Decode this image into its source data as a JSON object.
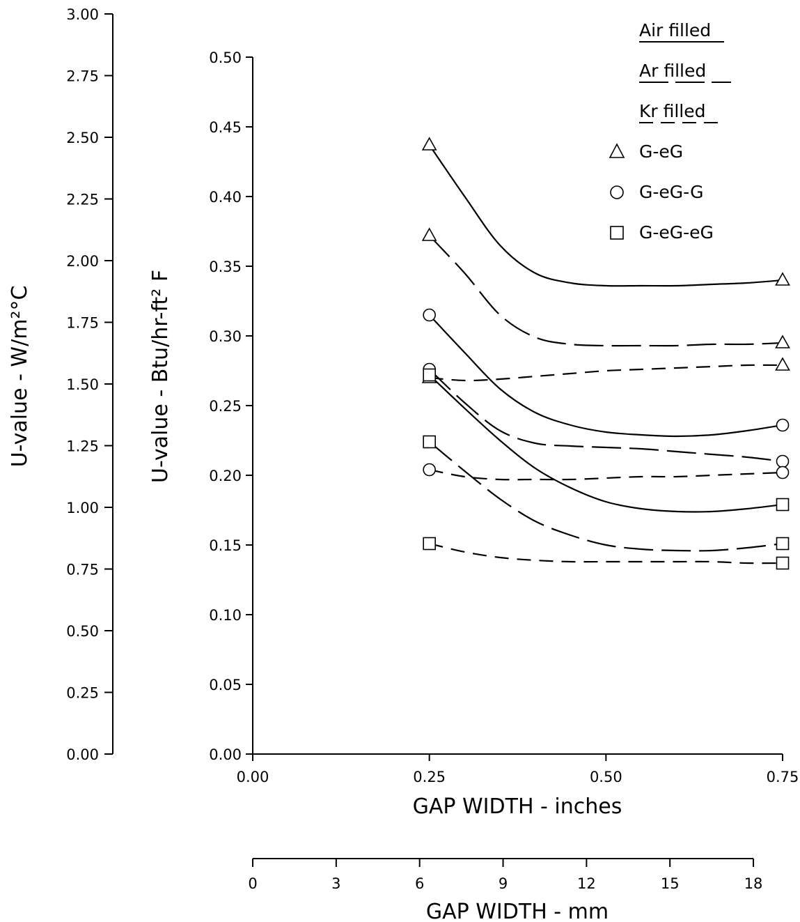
{
  "chart_data": {
    "type": "line",
    "x_unit_label": "GAP WIDTH - inches",
    "x_secondary_label": "GAP WIDTH - mm",
    "y_label": "U-value - Btu/hr-ft² F",
    "y_secondary_label": "U-value - W/m²°C",
    "x_range": [
      0,
      0.75
    ],
    "y_range": [
      0,
      0.5
    ],
    "y_secondary_range": [
      0,
      3.0
    ],
    "x_secondary_range": [
      0,
      18
    ],
    "x_ticks": [
      "0.00",
      "0.25",
      "0.50",
      "0.75"
    ],
    "y_ticks": [
      "0.00",
      "0.05",
      "0.10",
      "0.15",
      "0.20",
      "0.25",
      "0.30",
      "0.35",
      "0.40",
      "0.45",
      "0.50"
    ],
    "y_secondary_ticks": [
      "0.00",
      "0.25",
      "0.50",
      "0.75",
      "1.00",
      "1.25",
      "1.50",
      "1.75",
      "2.00",
      "2.25",
      "2.50",
      "2.75",
      "3.00"
    ],
    "x_secondary_ticks": [
      "0",
      "3",
      "6",
      "9",
      "12",
      "15",
      "18"
    ],
    "legend": {
      "fills": [
        {
          "label": "Air filled",
          "dash": "solid"
        },
        {
          "label": "Ar filled",
          "dash": "long-dash"
        },
        {
          "label": "Kr filled",
          "dash": "short-dash"
        }
      ],
      "markers": [
        {
          "label": "G-eG",
          "marker": "triangle"
        },
        {
          "label": "G-eG-G",
          "marker": "circle"
        },
        {
          "label": "G-eG-eG",
          "marker": "square"
        }
      ],
      "placement": "top-right"
    },
    "series": [
      {
        "glazing": "G-eG",
        "fill": "Air",
        "dash": "solid",
        "marker": "triangle",
        "points": [
          [
            0.25,
            0.437
          ],
          [
            0.75,
            0.34
          ]
        ],
        "curve": [
          [
            0.25,
            0.437
          ],
          [
            0.3,
            0.4
          ],
          [
            0.35,
            0.365
          ],
          [
            0.4,
            0.345
          ],
          [
            0.45,
            0.338
          ],
          [
            0.5,
            0.336
          ],
          [
            0.55,
            0.336
          ],
          [
            0.6,
            0.336
          ],
          [
            0.65,
            0.337
          ],
          [
            0.7,
            0.338
          ],
          [
            0.75,
            0.34
          ]
        ]
      },
      {
        "glazing": "G-eG",
        "fill": "Ar",
        "dash": "long-dash",
        "marker": "triangle",
        "points": [
          [
            0.25,
            0.372
          ],
          [
            0.75,
            0.295
          ]
        ],
        "curve": [
          [
            0.25,
            0.372
          ],
          [
            0.3,
            0.345
          ],
          [
            0.35,
            0.315
          ],
          [
            0.4,
            0.299
          ],
          [
            0.45,
            0.294
          ],
          [
            0.5,
            0.293
          ],
          [
            0.55,
            0.293
          ],
          [
            0.6,
            0.293
          ],
          [
            0.65,
            0.294
          ],
          [
            0.7,
            0.294
          ],
          [
            0.75,
            0.295
          ]
        ]
      },
      {
        "glazing": "G-eG",
        "fill": "Kr",
        "dash": "short-dash",
        "marker": "triangle",
        "points": [
          [
            0.25,
            0.27
          ],
          [
            0.75,
            0.279
          ]
        ],
        "curve": [
          [
            0.25,
            0.27
          ],
          [
            0.3,
            0.268
          ],
          [
            0.35,
            0.269
          ],
          [
            0.4,
            0.271
          ],
          [
            0.45,
            0.273
          ],
          [
            0.5,
            0.275
          ],
          [
            0.55,
            0.276
          ],
          [
            0.6,
            0.277
          ],
          [
            0.65,
            0.278
          ],
          [
            0.7,
            0.279
          ],
          [
            0.75,
            0.279
          ]
        ]
      },
      {
        "glazing": "G-eG-G",
        "fill": "Air",
        "dash": "solid",
        "marker": "circle",
        "points": [
          [
            0.25,
            0.315
          ],
          [
            0.75,
            0.236
          ]
        ],
        "curve": [
          [
            0.25,
            0.315
          ],
          [
            0.3,
            0.288
          ],
          [
            0.35,
            0.262
          ],
          [
            0.4,
            0.245
          ],
          [
            0.45,
            0.236
          ],
          [
            0.5,
            0.231
          ],
          [
            0.55,
            0.229
          ],
          [
            0.6,
            0.228
          ],
          [
            0.65,
            0.229
          ],
          [
            0.7,
            0.232
          ],
          [
            0.75,
            0.236
          ]
        ]
      },
      {
        "glazing": "G-eG-G",
        "fill": "Ar",
        "dash": "long-dash",
        "marker": "circle",
        "points": [
          [
            0.25,
            0.276
          ],
          [
            0.75,
            0.21
          ]
        ],
        "curve": [
          [
            0.25,
            0.276
          ],
          [
            0.3,
            0.252
          ],
          [
            0.35,
            0.232
          ],
          [
            0.4,
            0.223
          ],
          [
            0.45,
            0.221
          ],
          [
            0.5,
            0.22
          ],
          [
            0.55,
            0.219
          ],
          [
            0.6,
            0.217
          ],
          [
            0.65,
            0.215
          ],
          [
            0.7,
            0.213
          ],
          [
            0.75,
            0.21
          ]
        ]
      },
      {
        "glazing": "G-eG-G",
        "fill": "Kr",
        "dash": "short-dash",
        "marker": "circle",
        "points": [
          [
            0.25,
            0.204
          ],
          [
            0.75,
            0.202
          ]
        ],
        "curve": [
          [
            0.25,
            0.204
          ],
          [
            0.3,
            0.199
          ],
          [
            0.35,
            0.197
          ],
          [
            0.4,
            0.197
          ],
          [
            0.45,
            0.197
          ],
          [
            0.5,
            0.198
          ],
          [
            0.55,
            0.199
          ],
          [
            0.6,
            0.199
          ],
          [
            0.65,
            0.2
          ],
          [
            0.7,
            0.201
          ],
          [
            0.75,
            0.202
          ]
        ]
      },
      {
        "glazing": "G-eG-eG",
        "fill": "Air",
        "dash": "solid",
        "marker": "square",
        "points": [
          [
            0.25,
            0.272
          ],
          [
            0.75,
            0.179
          ]
        ],
        "curve": [
          [
            0.25,
            0.272
          ],
          [
            0.3,
            0.248
          ],
          [
            0.35,
            0.225
          ],
          [
            0.4,
            0.205
          ],
          [
            0.45,
            0.191
          ],
          [
            0.5,
            0.181
          ],
          [
            0.55,
            0.176
          ],
          [
            0.6,
            0.174
          ],
          [
            0.65,
            0.174
          ],
          [
            0.7,
            0.176
          ],
          [
            0.75,
            0.179
          ]
        ]
      },
      {
        "glazing": "G-eG-eG",
        "fill": "Ar",
        "dash": "long-dash",
        "marker": "square",
        "points": [
          [
            0.25,
            0.224
          ],
          [
            0.75,
            0.151
          ]
        ],
        "curve": [
          [
            0.25,
            0.224
          ],
          [
            0.3,
            0.203
          ],
          [
            0.35,
            0.183
          ],
          [
            0.4,
            0.167
          ],
          [
            0.45,
            0.157
          ],
          [
            0.5,
            0.15
          ],
          [
            0.55,
            0.147
          ],
          [
            0.6,
            0.146
          ],
          [
            0.65,
            0.146
          ],
          [
            0.7,
            0.148
          ],
          [
            0.75,
            0.151
          ]
        ]
      },
      {
        "glazing": "G-eG-eG",
        "fill": "Kr",
        "dash": "short-dash",
        "marker": "square",
        "points": [
          [
            0.25,
            0.151
          ],
          [
            0.75,
            0.137
          ]
        ],
        "curve": [
          [
            0.25,
            0.151
          ],
          [
            0.3,
            0.145
          ],
          [
            0.35,
            0.141
          ],
          [
            0.4,
            0.139
          ],
          [
            0.45,
            0.138
          ],
          [
            0.5,
            0.138
          ],
          [
            0.55,
            0.138
          ],
          [
            0.6,
            0.138
          ],
          [
            0.65,
            0.138
          ],
          [
            0.7,
            0.137
          ],
          [
            0.75,
            0.137
          ]
        ]
      }
    ]
  }
}
